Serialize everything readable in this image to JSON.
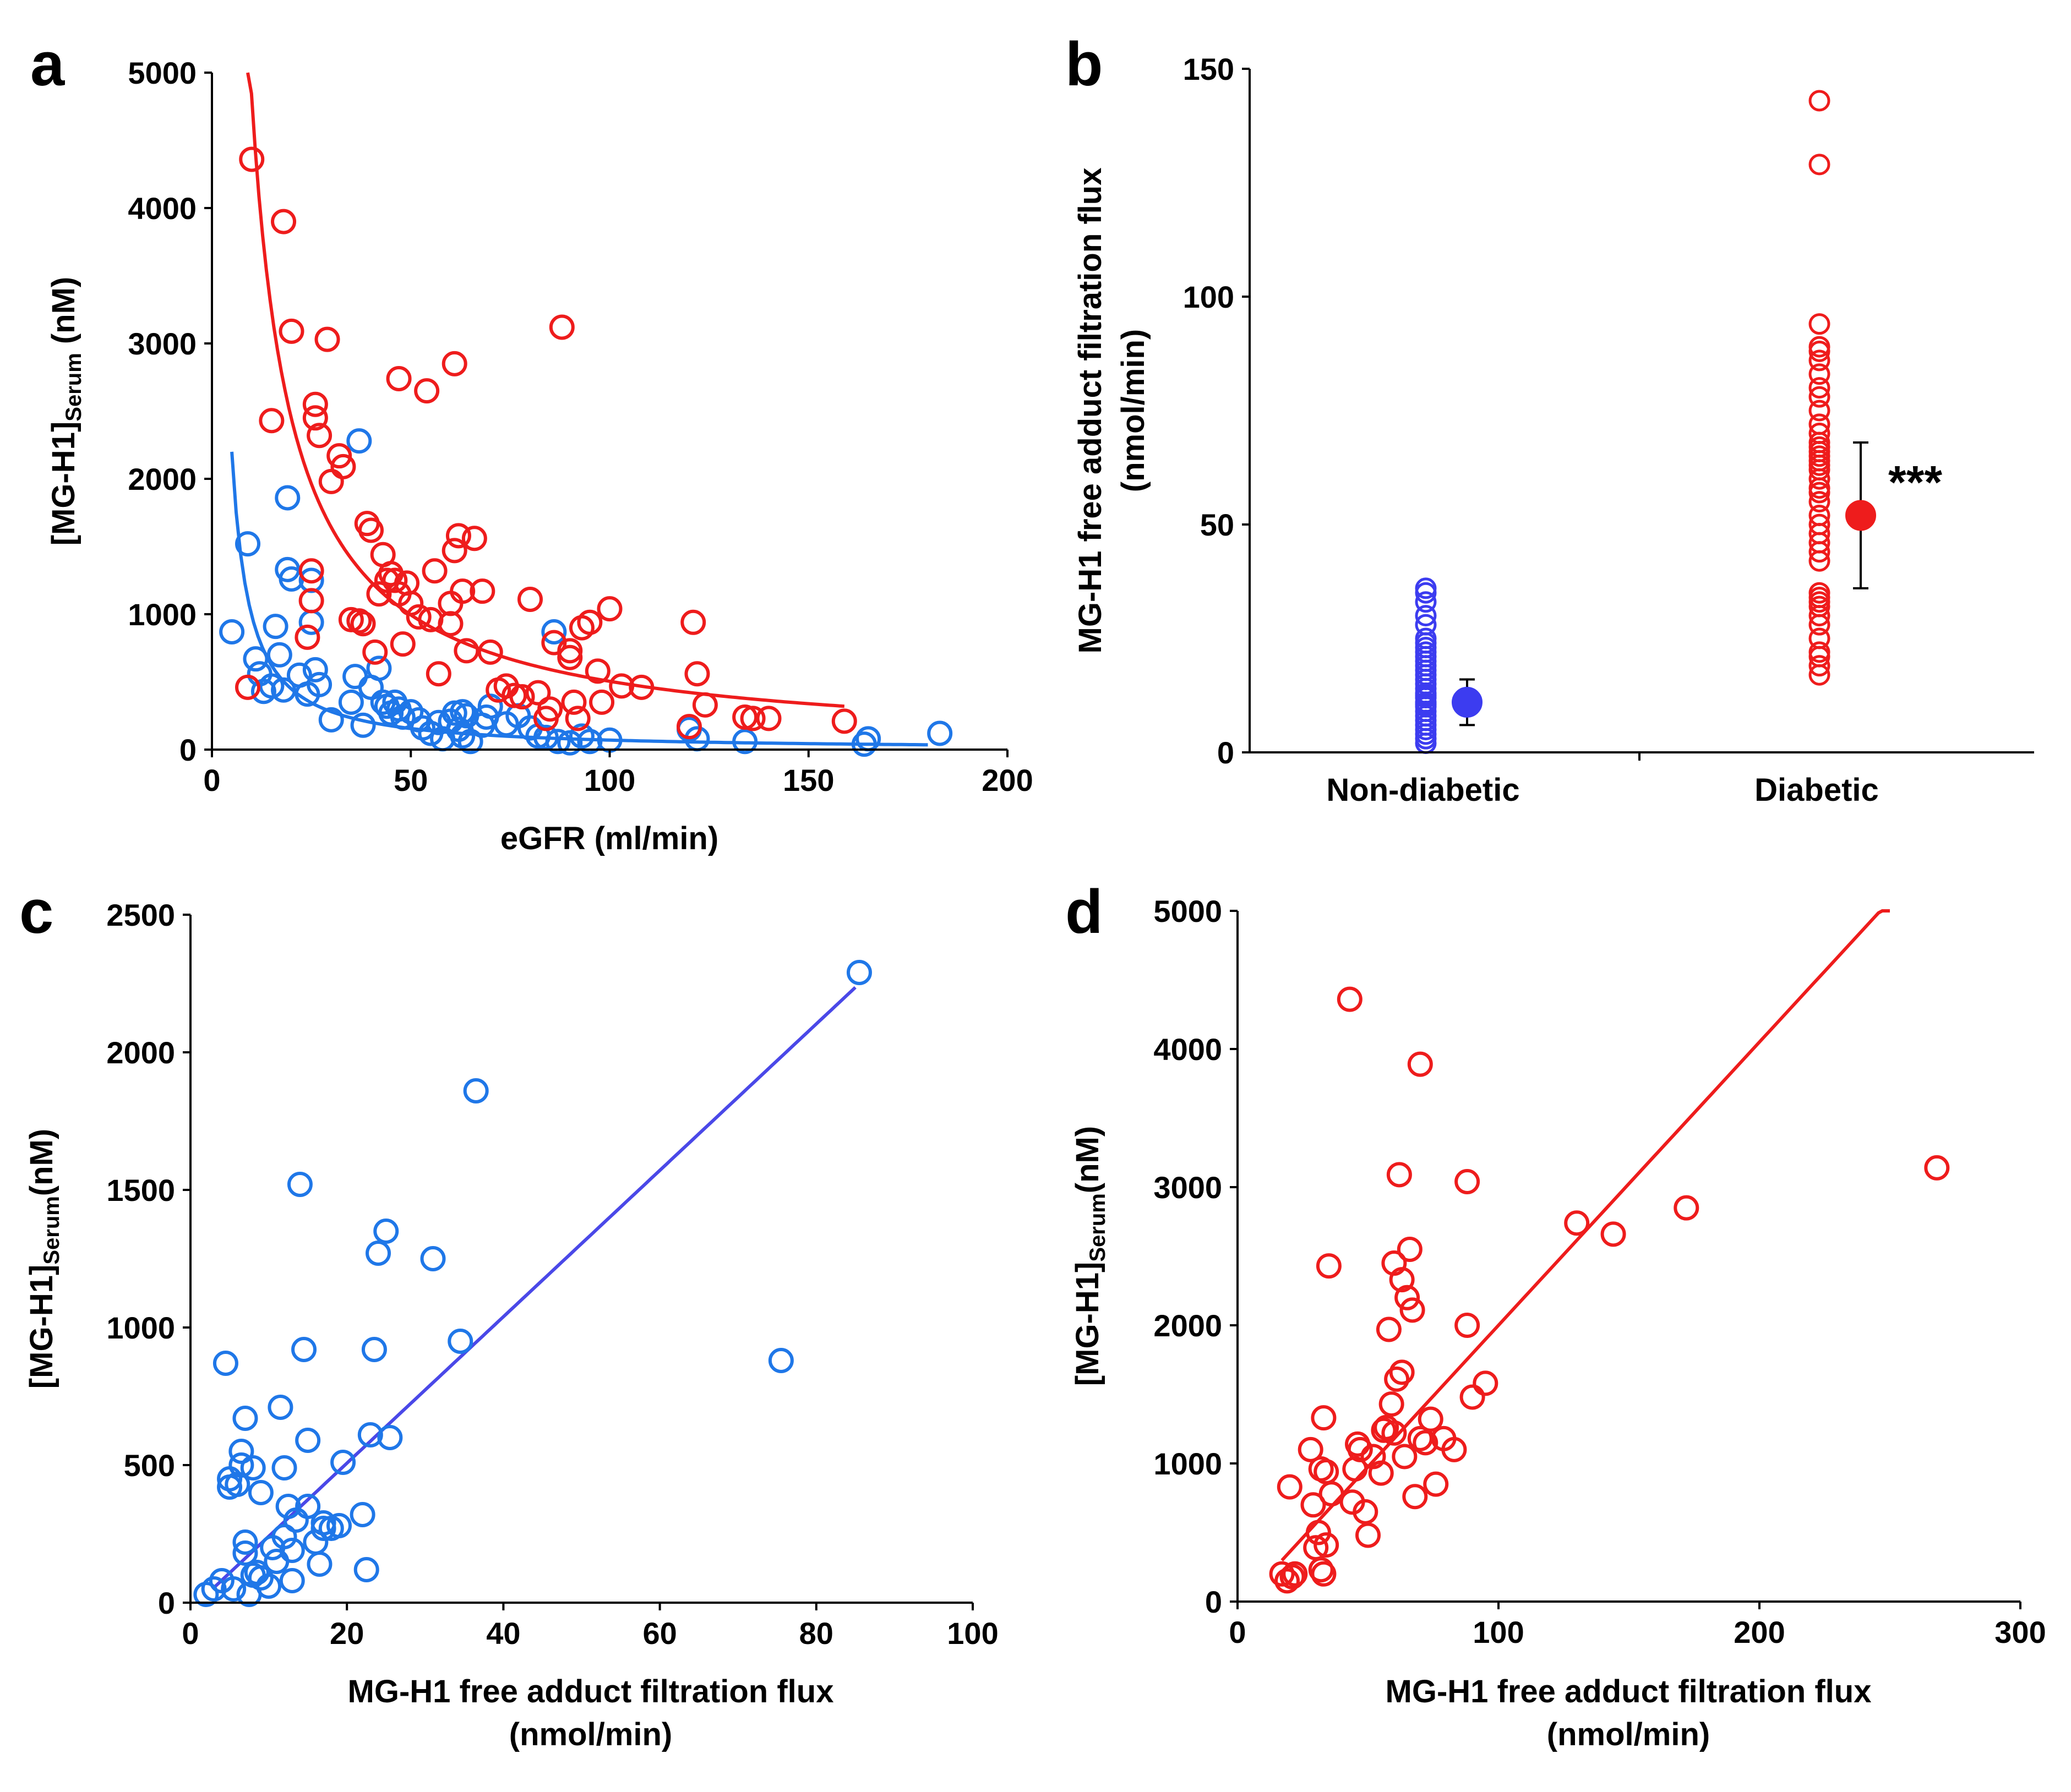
{
  "colors": {
    "blue": "#1f77e8",
    "red": "#ee1c1c",
    "purple": "#4a48e8",
    "nd_blue": "#3c3cf0"
  },
  "chart_data": [
    {
      "type": "scatter",
      "panel": "a",
      "xlabel": "eGFR (ml/min)",
      "ylabel": {
        "pre": "[MG-H1]",
        "sub": "Serum",
        "post": " (nM)"
      },
      "xlim": [
        0,
        200
      ],
      "ylim": [
        0,
        5000
      ],
      "xticks": [
        0,
        50,
        100,
        150,
        200
      ],
      "yticks": [
        0,
        1000,
        2000,
        3000,
        4000,
        5000
      ],
      "series": [
        {
          "name": "Non-diabetic",
          "color": "#1f77e8",
          "x": [
            5,
            9,
            11,
            12,
            13,
            15,
            16,
            17,
            18,
            19,
            19,
            20,
            22,
            24,
            25,
            25,
            26,
            27,
            30,
            35,
            36,
            37,
            37,
            38,
            40,
            42,
            43,
            44,
            45,
            46,
            47,
            48,
            50,
            52,
            53,
            55,
            57,
            58,
            60,
            61,
            62,
            63,
            63,
            64,
            65,
            68,
            69,
            70,
            74,
            77,
            80,
            82,
            84,
            86,
            87,
            90,
            93,
            95,
            100,
            120,
            122,
            134,
            164,
            165,
            183
          ],
          "y": [
            870,
            1520,
            670,
            560,
            430,
            470,
            910,
            700,
            440,
            1330,
            1860,
            1260,
            550,
            410,
            1250,
            940,
            590,
            480,
            220,
            350,
            540,
            950,
            2280,
            180,
            460,
            600,
            350,
            320,
            270,
            350,
            300,
            240,
            280,
            220,
            160,
            120,
            200,
            80,
            210,
            270,
            150,
            100,
            280,
            250,
            60,
            180,
            240,
            320,
            190,
            250,
            160,
            100,
            90,
            870,
            60,
            50,
            100,
            60,
            70,
            150,
            80,
            60,
            40,
            80,
            120
          ]
        },
        {
          "name": "Diabetic",
          "color": "#ee1c1c",
          "x": [
            9,
            10,
            15,
            18,
            20,
            24,
            25,
            25,
            26,
            26,
            27,
            29,
            30,
            32,
            33,
            35,
            37,
            38,
            39,
            40,
            41,
            42,
            43,
            44,
            45,
            46,
            47,
            47,
            48,
            49,
            50,
            52,
            54,
            55,
            56,
            57,
            60,
            60,
            61,
            61,
            62,
            63,
            64,
            66,
            68,
            70,
            72,
            74,
            76,
            78,
            80,
            82,
            84,
            85,
            86,
            88,
            90,
            90,
            91,
            92,
            93,
            95,
            97,
            98,
            100,
            103,
            108,
            120,
            121,
            122,
            124,
            134,
            136,
            140,
            159
          ],
          "y": [
            460,
            4360,
            2430,
            3900,
            3090,
            830,
            1320,
            1100,
            2450,
            2550,
            2320,
            3030,
            1980,
            2170,
            2090,
            960,
            950,
            930,
            1670,
            1620,
            720,
            1150,
            1440,
            1250,
            1300,
            1250,
            1150,
            2740,
            780,
            1230,
            1080,
            980,
            2650,
            960,
            1320,
            560,
            1080,
            930,
            1470,
            2850,
            1580,
            1170,
            730,
            1560,
            1170,
            720,
            440,
            470,
            400,
            390,
            1110,
            420,
            230,
            300,
            790,
            3120,
            730,
            680,
            350,
            230,
            900,
            940,
            580,
            350,
            1040,
            470,
            460,
            170,
            940,
            560,
            330,
            240,
            230,
            230,
            210
          ]
        }
      ],
      "fits": [
        {
          "series": "Non-diabetic",
          "color": "#1f77e8",
          "x_range": [
            5,
            180
          ],
          "model": "power",
          "a": 14000,
          "b": -1.15
        },
        {
          "series": "Diabetic",
          "color": "#ee1c1c",
          "x_range": [
            9,
            159
          ],
          "model": "power",
          "a": 46000,
          "b": -0.98
        }
      ]
    },
    {
      "type": "scatter",
      "panel": "b",
      "ylabel": [
        "MG-H1 free adduct filtration flux",
        "(nmol/min)"
      ],
      "categories": [
        "Non-diabetic",
        "Diabetic"
      ],
      "ylim": [
        0,
        150
      ],
      "yticks": [
        0,
        50,
        100,
        150
      ],
      "series": [
        {
          "name": "Non-diabetic",
          "color": "#3c3cf0",
          "values": [
            2,
            3,
            4,
            5,
            6,
            7,
            8,
            9,
            10,
            10.5,
            11,
            12,
            12.5,
            13,
            14,
            15,
            16,
            17,
            18,
            19,
            20,
            21,
            22,
            23,
            24,
            25,
            28,
            30,
            33,
            35,
            36
          ],
          "mean": 11,
          "error": 5
        },
        {
          "name": "Diabetic",
          "color": "#ee1c1c",
          "values": [
            17,
            19,
            21,
            22,
            25,
            28,
            30,
            32,
            33,
            34,
            35,
            42,
            44,
            46,
            48,
            50,
            52,
            55,
            57,
            58,
            60,
            62,
            63,
            64,
            65,
            66,
            67,
            68,
            70,
            72,
            75,
            78,
            80,
            83,
            86,
            88,
            89,
            94,
            129,
            143
          ],
          "mean": 52,
          "error": 16
        }
      ],
      "annotation": "***"
    },
    {
      "type": "scatter",
      "panel": "c",
      "xlabel": [
        "MG-H1 free adduct filtration flux",
        "(nmol/min)"
      ],
      "ylabel": {
        "pre": "[MG-H1]",
        "sub": "Serum",
        "post": "(nM)"
      },
      "xlim": [
        0,
        100
      ],
      "ylim": [
        0,
        2500
      ],
      "xticks": [
        0,
        20,
        40,
        60,
        80,
        100
      ],
      "yticks": [
        0,
        500,
        1000,
        1500,
        2000,
        2500
      ],
      "series": [
        {
          "name": "Non-diabetic",
          "color": "#1f77e8",
          "x": [
            2,
            3,
            4,
            4.5,
            5,
            5,
            5.5,
            6,
            6.5,
            6.5,
            7,
            7,
            7,
            7.5,
            8,
            8,
            8.5,
            9,
            9,
            10,
            10.5,
            11,
            11.5,
            12,
            12,
            12.5,
            13,
            13,
            13.5,
            14,
            14.5,
            15,
            15,
            16,
            16.5,
            17,
            17,
            18,
            19,
            19.5,
            22,
            22.5,
            23,
            23.5,
            24,
            25,
            25.5,
            31,
            34.5,
            36.5,
            75.5,
            85.5
          ],
          "y": [
            30,
            50,
            80,
            870,
            450,
            420,
            50,
            430,
            550,
            500,
            180,
            220,
            670,
            30,
            100,
            490,
            110,
            400,
            90,
            60,
            200,
            150,
            710,
            490,
            240,
            350,
            190,
            80,
            300,
            1520,
            920,
            590,
            350,
            220,
            140,
            270,
            290,
            270,
            280,
            510,
            320,
            120,
            610,
            920,
            1270,
            1350,
            600,
            1250,
            950,
            1860,
            880,
            2290
          ]
        }
      ],
      "fits": [
        {
          "color": "#4a48e8",
          "x_range": [
            3,
            85
          ],
          "model": "linear",
          "slope": 26.6,
          "intercept": -25
        }
      ]
    },
    {
      "type": "scatter",
      "panel": "d",
      "xlabel": [
        "MG-H1 free adduct filtration flux",
        "(nmol/min)"
      ],
      "ylabel": {
        "pre": "[MG-H1]",
        "sub": "Serum",
        "post": "(nM)"
      },
      "xlim": [
        0,
        300
      ],
      "ylim": [
        0,
        5000
      ],
      "xticks": [
        0,
        100,
        200,
        300
      ],
      "yticks": [
        0,
        1000,
        2000,
        3000,
        4000,
        5000
      ],
      "series": [
        {
          "name": "Diabetic",
          "color": "#ee1c1c",
          "x": [
            17,
            19,
            21,
            22,
            20,
            28,
            29,
            30,
            31,
            32,
            32,
            33,
            33,
            34,
            34,
            35,
            36,
            44,
            45,
            46,
            47,
            49,
            50,
            52,
            55,
            56,
            57,
            58,
            59,
            60,
            60,
            61,
            62,
            63,
            63,
            64,
            65,
            66,
            67,
            68,
            70,
            72,
            74,
            76,
            79,
            83,
            88,
            88,
            90,
            95,
            130,
            144,
            172,
            268,
            43,
            70
          ],
          "y": [
            200,
            150,
            180,
            200,
            830,
            1100,
            700,
            390,
            500,
            960,
            230,
            200,
            1330,
            410,
            940,
            2430,
            780,
            720,
            960,
            1140,
            1100,
            650,
            480,
            1050,
            930,
            1240,
            1260,
            1970,
            1430,
            2450,
            1220,
            1610,
            3090,
            2330,
            1660,
            1050,
            2200,
            2550,
            2110,
            760,
            1180,
            1150,
            1320,
            850,
            1180,
            1100,
            3040,
            2000,
            1480,
            1580,
            2740,
            2660,
            2850,
            3140,
            4360,
            3890
          ]
        }
      ],
      "fits": [
        {
          "color": "#ee1c1c",
          "x_range": [
            17,
            250
          ],
          "model": "linear",
          "slope": 20.5,
          "intercept": -50
        }
      ]
    }
  ]
}
